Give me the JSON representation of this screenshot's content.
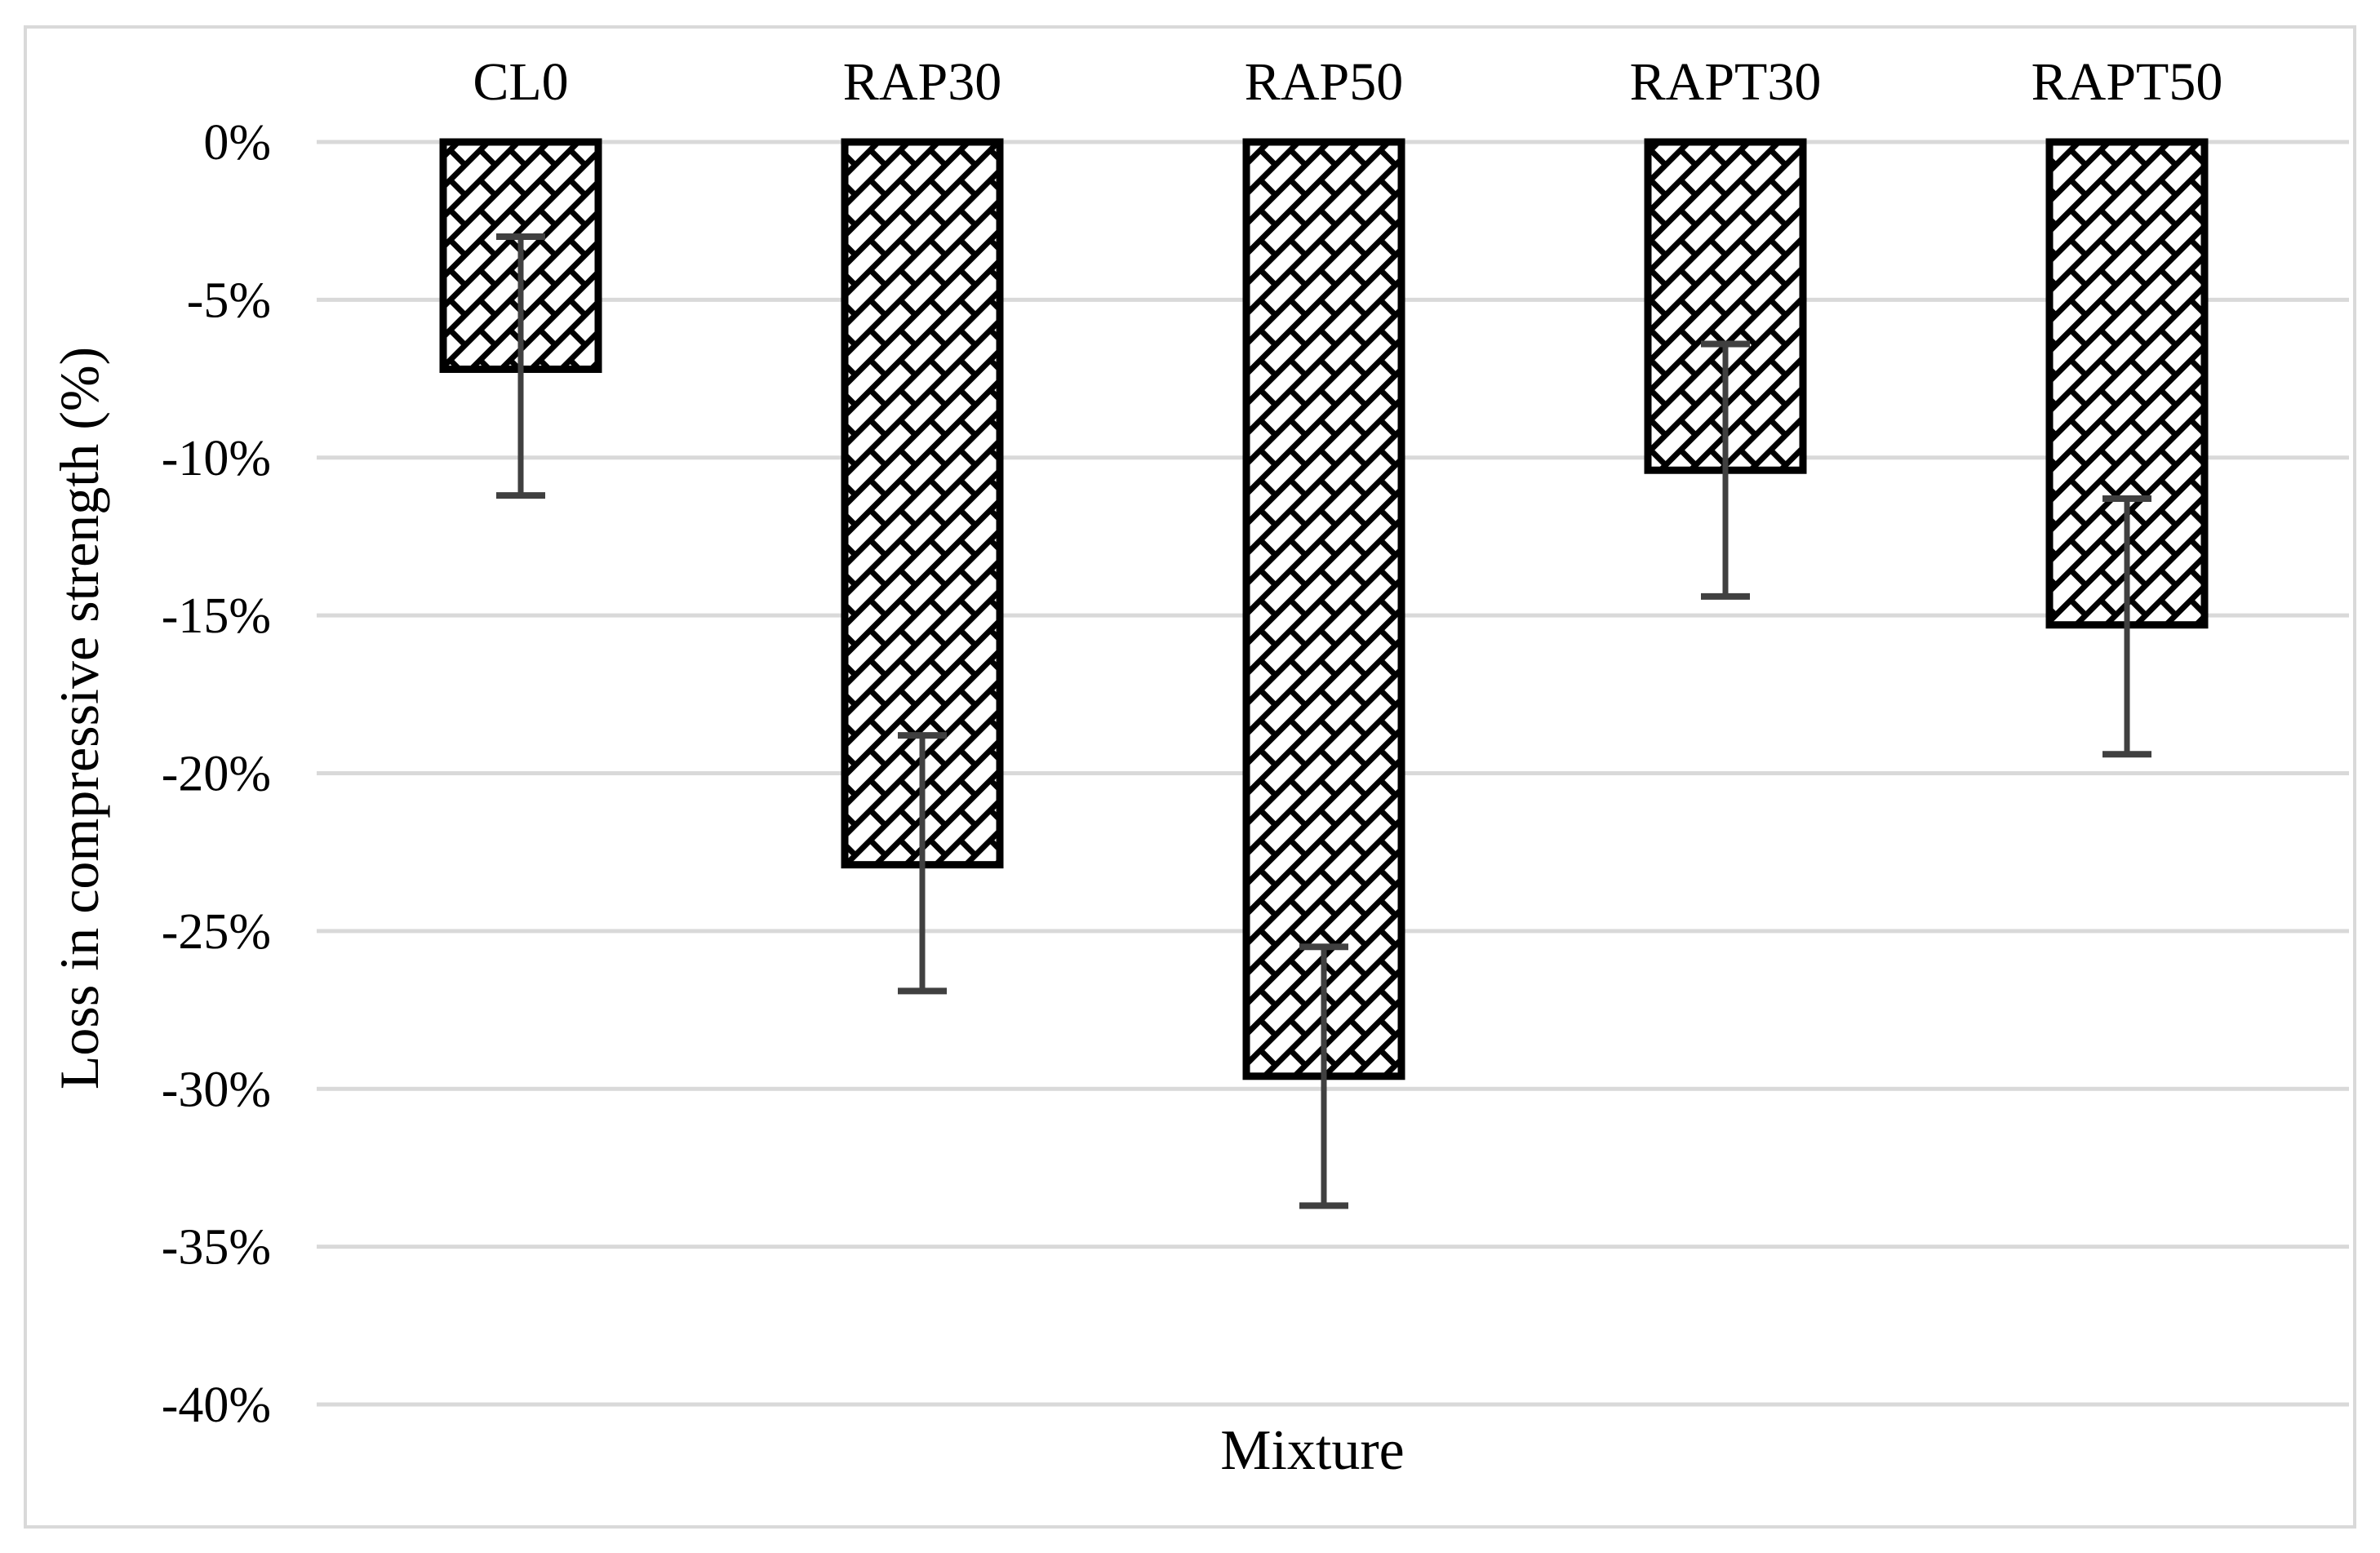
{
  "chart_data": {
    "type": "bar",
    "title": "",
    "xlabel": "Mixture",
    "ylabel": "Loss in compressive strength (%)",
    "categories": [
      "CL0",
      "RAP30",
      "RAP50",
      "RAPT30",
      "RAPT50"
    ],
    "values": [
      -7.2,
      -22.9,
      -29.6,
      -10.4,
      -15.3
    ],
    "error_high": [
      -3.0,
      -18.8,
      -25.5,
      -6.4,
      -11.3
    ],
    "error_low": [
      -11.2,
      -26.9,
      -33.7,
      -14.4,
      -19.4
    ],
    "y_ticks": [
      "0%",
      "-5%",
      "-10%",
      "-15%",
      "-20%",
      "-25%",
      "-30%",
      "-35%",
      "-40%"
    ],
    "y_tick_values": [
      0,
      -5,
      -10,
      -15,
      -20,
      -25,
      -30,
      -35,
      -40
    ],
    "ylim": [
      0,
      -40
    ],
    "grid": true,
    "legend_position": "none",
    "bar_fill_style": "diagonal-brick-hatch",
    "colors": {
      "bar_fill_background": "#FFFFFF",
      "bar_hatch": "#000000",
      "bar_border": "#000000",
      "error_bar": "#404040",
      "gridline": "#D9D9D9",
      "figure_border": "#D9D9D9",
      "text": "#000000",
      "background": "#FFFFFF"
    }
  }
}
